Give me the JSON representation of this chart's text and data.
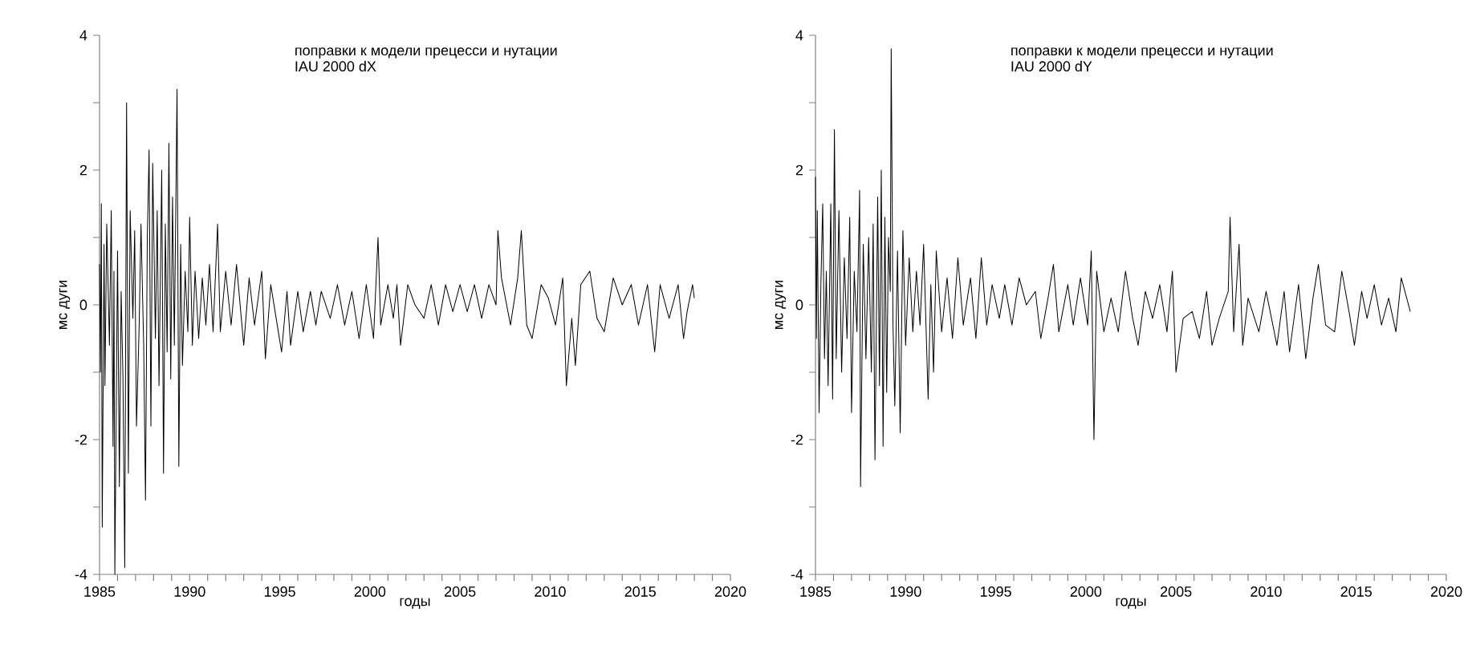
{
  "chart_data": [
    {
      "type": "line",
      "title": "поправки к модели прецесси и нутации",
      "subtitle": "IAU 2000    dX",
      "xlabel": "годы",
      "ylabel": "мс дуги",
      "xlim": [
        1985,
        2020
      ],
      "ylim": [
        -4,
        4
      ],
      "xticks": [
        1985,
        {
          "value": 1986,
          "label": null
        },
        {
          "value": 1987,
          "label": null
        },
        {
          "value": 1988,
          "label": null
        },
        {
          "value": 1989,
          "label": null
        },
        1990,
        {
          "value": 1991,
          "label": null
        },
        {
          "value": 1992,
          "label": null
        },
        {
          "value": 1993,
          "label": null
        },
        {
          "value": 1994,
          "label": null
        },
        1995,
        {
          "value": 1996,
          "label": null
        },
        {
          "value": 1997,
          "label": null
        },
        {
          "value": 1998,
          "label": null
        },
        {
          "value": 1999,
          "label": null
        },
        2000,
        {
          "value": 2001,
          "label": null
        },
        {
          "value": 2002,
          "label": null
        },
        {
          "value": 2003,
          "label": null
        },
        {
          "value": 2004,
          "label": null
        },
        2005,
        {
          "value": 2006,
          "label": null
        },
        {
          "value": 2007,
          "label": null
        },
        {
          "value": 2008,
          "label": null
        },
        {
          "value": 2009,
          "label": null
        },
        2010,
        {
          "value": 2011,
          "label": null
        },
        {
          "value": 2012,
          "label": null
        },
        {
          "value": 2013,
          "label": null
        },
        {
          "value": 2014,
          "label": null
        },
        2015,
        {
          "value": 2016,
          "label": null
        },
        {
          "value": 2017,
          "label": null
        },
        {
          "value": 2018,
          "label": null
        },
        {
          "value": 2019,
          "label": null
        },
        2020
      ],
      "yticks": [
        -4,
        {
          "value": -3,
          "label": null
        },
        -2,
        {
          "value": -1,
          "label": null
        },
        0,
        {
          "value": 1,
          "label": null
        },
        2,
        {
          "value": 3,
          "label": null
        },
        4
      ],
      "series": [
        {
          "color": "#000000",
          "x": [
            1985.0,
            1985.05,
            1985.1,
            1985.15,
            1985.25,
            1985.3,
            1985.4,
            1985.55,
            1985.65,
            1985.75,
            1985.8,
            1985.85,
            1986.0,
            1986.1,
            1986.2,
            1986.3,
            1986.4,
            1986.5,
            1986.6,
            1986.7,
            1986.85,
            1986.95,
            1987.05,
            1987.2,
            1987.3,
            1987.45,
            1987.55,
            1987.65,
            1987.75,
            1987.85,
            1987.95,
            1988.1,
            1988.2,
            1988.3,
            1988.45,
            1988.55,
            1988.65,
            1988.75,
            1988.85,
            1988.95,
            1989.05,
            1989.15,
            1989.3,
            1989.4,
            1989.5,
            1989.6,
            1989.75,
            1989.9,
            1990.0,
            1990.15,
            1990.3,
            1990.5,
            1990.7,
            1990.9,
            1991.1,
            1991.3,
            1991.55,
            1991.7,
            1992.0,
            1992.3,
            1992.6,
            1993.0,
            1993.3,
            1993.6,
            1994.0,
            1994.2,
            1994.5,
            1994.8,
            1995.1,
            1995.4,
            1995.6,
            1996.0,
            1996.3,
            1996.7,
            1997.0,
            1997.3,
            1997.8,
            1998.2,
            1998.6,
            1999.0,
            1999.4,
            1999.8,
            2000.2,
            2000.45,
            2000.6,
            2001.0,
            2001.3,
            2001.5,
            2001.7,
            2002.1,
            2002.5,
            2003.0,
            2003.4,
            2003.8,
            2004.2,
            2004.6,
            2005.0,
            2005.4,
            2005.8,
            2006.2,
            2006.6,
            2007.0,
            2007.1,
            2007.3,
            2007.8,
            2008.2,
            2008.4,
            2008.7,
            2009.0,
            2009.5,
            2009.9,
            2010.3,
            2010.7,
            2010.9,
            2011.2,
            2011.4,
            2011.7,
            2012.2,
            2012.6,
            2013.0,
            2013.5,
            2014.0,
            2014.5,
            2014.9,
            2015.4,
            2015.8,
            2016.1,
            2016.6,
            2017.1,
            2017.4,
            2017.6,
            2017.9,
            2018.0
          ],
          "values": [
            0.6,
            -1.0,
            1.5,
            -3.3,
            0.9,
            -1.2,
            1.2,
            -0.6,
            1.4,
            -2.1,
            0.5,
            -4.0,
            0.8,
            -2.7,
            0.2,
            -1.1,
            -3.9,
            3.0,
            -2.5,
            1.4,
            -0.2,
            1.1,
            -1.8,
            -0.3,
            1.2,
            -0.6,
            -2.9,
            1.0,
            2.3,
            -1.8,
            2.1,
            -0.5,
            1.4,
            -1.2,
            2.0,
            -2.5,
            1.2,
            -0.7,
            2.4,
            -1.1,
            1.6,
            -0.6,
            3.2,
            -2.4,
            0.9,
            -0.9,
            0.5,
            -0.4,
            1.3,
            -0.6,
            0.5,
            -0.5,
            0.4,
            -0.3,
            0.6,
            -0.4,
            1.2,
            -0.4,
            0.5,
            -0.3,
            0.6,
            -0.6,
            0.4,
            -0.3,
            0.5,
            -0.8,
            0.3,
            -0.2,
            -0.7,
            0.2,
            -0.6,
            0.2,
            -0.4,
            0.2,
            -0.3,
            0.2,
            -0.2,
            0.3,
            -0.3,
            0.2,
            -0.5,
            0.3,
            -0.5,
            1.0,
            -0.3,
            0.3,
            -0.2,
            0.3,
            -0.6,
            0.3,
            0.0,
            -0.2,
            0.3,
            -0.3,
            0.3,
            -0.1,
            0.3,
            -0.1,
            0.3,
            -0.2,
            0.3,
            0.0,
            1.1,
            0.4,
            -0.3,
            0.4,
            1.1,
            -0.3,
            -0.5,
            0.3,
            0.1,
            -0.3,
            0.4,
            -1.2,
            -0.2,
            -0.9,
            0.3,
            0.5,
            -0.2,
            -0.4,
            0.4,
            0.0,
            0.3,
            -0.3,
            0.3,
            -0.7,
            0.3,
            -0.2,
            0.3,
            -0.5,
            -0.1,
            0.3,
            0.1
          ]
        }
      ]
    },
    {
      "type": "line",
      "title": "поправки к модели прецесси и нутации",
      "subtitle": "IAU 2000    dY",
      "xlabel": "годы",
      "ylabel": "мс дуги",
      "xlim": [
        1985,
        2020
      ],
      "ylim": [
        -4,
        4
      ],
      "xticks": [
        1985,
        {
          "value": 1986,
          "label": null
        },
        {
          "value": 1987,
          "label": null
        },
        {
          "value": 1988,
          "label": null
        },
        {
          "value": 1989,
          "label": null
        },
        1990,
        {
          "value": 1991,
          "label": null
        },
        {
          "value": 1992,
          "label": null
        },
        {
          "value": 1993,
          "label": null
        },
        {
          "value": 1994,
          "label": null
        },
        1995,
        {
          "value": 1996,
          "label": null
        },
        {
          "value": 1997,
          "label": null
        },
        {
          "value": 1998,
          "label": null
        },
        {
          "value": 1999,
          "label": null
        },
        2000,
        {
          "value": 2001,
          "label": null
        },
        {
          "value": 2002,
          "label": null
        },
        {
          "value": 2003,
          "label": null
        },
        {
          "value": 2004,
          "label": null
        },
        2005,
        {
          "value": 2006,
          "label": null
        },
        {
          "value": 2007,
          "label": null
        },
        {
          "value": 2008,
          "label": null
        },
        {
          "value": 2009,
          "label": null
        },
        2010,
        {
          "value": 2011,
          "label": null
        },
        {
          "value": 2012,
          "label": null
        },
        {
          "value": 2013,
          "label": null
        },
        {
          "value": 2014,
          "label": null
        },
        2015,
        {
          "value": 2016,
          "label": null
        },
        {
          "value": 2017,
          "label": null
        },
        {
          "value": 2018,
          "label": null
        },
        {
          "value": 2019,
          "label": null
        },
        2020
      ],
      "yticks": [
        -4,
        {
          "value": -3,
          "label": null
        },
        -2,
        {
          "value": -1,
          "label": null
        },
        0,
        {
          "value": 1,
          "label": null
        },
        2,
        {
          "value": 3,
          "label": null
        },
        4
      ],
      "series": [
        {
          "color": "#000000",
          "x": [
            1985.0,
            1985.05,
            1985.1,
            1985.2,
            1985.3,
            1985.4,
            1985.5,
            1985.6,
            1985.7,
            1985.85,
            1985.95,
            1986.05,
            1986.15,
            1986.3,
            1986.45,
            1986.6,
            1986.75,
            1986.9,
            1987.0,
            1987.15,
            1987.3,
            1987.45,
            1987.5,
            1987.65,
            1987.8,
            1987.95,
            1988.1,
            1988.2,
            1988.3,
            1988.45,
            1988.55,
            1988.65,
            1988.75,
            1988.85,
            1988.95,
            1989.05,
            1989.15,
            1989.2,
            1989.3,
            1989.4,
            1989.55,
            1989.7,
            1989.85,
            1990.0,
            1990.2,
            1990.4,
            1990.6,
            1990.8,
            1991.0,
            1991.25,
            1991.4,
            1991.55,
            1991.7,
            1992.0,
            1992.3,
            1992.6,
            1992.9,
            1993.2,
            1993.6,
            1993.9,
            1994.2,
            1994.5,
            1994.8,
            1995.2,
            1995.5,
            1995.9,
            1996.3,
            1996.7,
            1997.2,
            1997.5,
            1997.9,
            1998.2,
            1998.5,
            1999.0,
            1999.3,
            1999.7,
            2000.1,
            2000.3,
            2000.45,
            2000.6,
            2001.0,
            2001.4,
            2001.8,
            2002.2,
            2002.6,
            2002.9,
            2003.3,
            2003.7,
            2004.1,
            2004.5,
            2004.8,
            2005.0,
            2005.4,
            2005.9,
            2006.3,
            2006.7,
            2007.0,
            2007.4,
            2007.9,
            2008.0,
            2008.2,
            2008.5,
            2008.7,
            2009.0,
            2009.6,
            2010.0,
            2010.3,
            2010.6,
            2011.0,
            2011.3,
            2011.8,
            2012.2,
            2012.6,
            2012.9,
            2013.3,
            2013.8,
            2014.2,
            2014.6,
            2014.9,
            2015.3,
            2015.6,
            2016.0,
            2016.4,
            2016.8,
            2017.2,
            2017.5,
            2017.8,
            2018.0
          ],
          "values": [
            1.9,
            -0.5,
            1.4,
            -1.6,
            0.3,
            1.5,
            -0.8,
            0.5,
            -1.2,
            1.5,
            -1.4,
            2.6,
            -0.8,
            1.4,
            -1.0,
            0.7,
            -0.5,
            1.3,
            -1.6,
            0.5,
            -0.4,
            1.7,
            -2.7,
            0.9,
            -0.8,
            1.0,
            -1.0,
            1.2,
            -2.3,
            1.6,
            -1.2,
            2.0,
            -2.1,
            1.3,
            -1.3,
            1.0,
            0.2,
            3.8,
            -0.3,
            -1.5,
            0.8,
            -1.9,
            1.1,
            -0.6,
            0.7,
            -0.4,
            0.5,
            -0.3,
            0.9,
            -1.4,
            0.3,
            -1.0,
            0.8,
            -0.4,
            0.4,
            -0.5,
            0.7,
            -0.3,
            0.4,
            -0.5,
            0.7,
            -0.3,
            0.3,
            -0.2,
            0.3,
            -0.3,
            0.4,
            0.0,
            0.2,
            -0.5,
            0.1,
            0.6,
            -0.4,
            0.3,
            -0.3,
            0.4,
            -0.3,
            0.8,
            -2.0,
            0.5,
            -0.4,
            0.1,
            -0.4,
            0.5,
            -0.2,
            -0.6,
            0.2,
            -0.2,
            0.3,
            -0.4,
            0.5,
            -1.0,
            -0.2,
            -0.1,
            -0.5,
            0.2,
            -0.6,
            -0.2,
            0.2,
            1.3,
            -0.4,
            0.9,
            -0.6,
            0.1,
            -0.4,
            0.2,
            -0.2,
            -0.6,
            0.2,
            -0.7,
            0.3,
            -0.8,
            0.1,
            0.6,
            -0.3,
            -0.4,
            0.5,
            -0.1,
            -0.6,
            0.2,
            -0.2,
            0.3,
            -0.3,
            0.1,
            -0.4,
            0.4,
            0.1,
            -0.1
          ]
        }
      ]
    }
  ]
}
